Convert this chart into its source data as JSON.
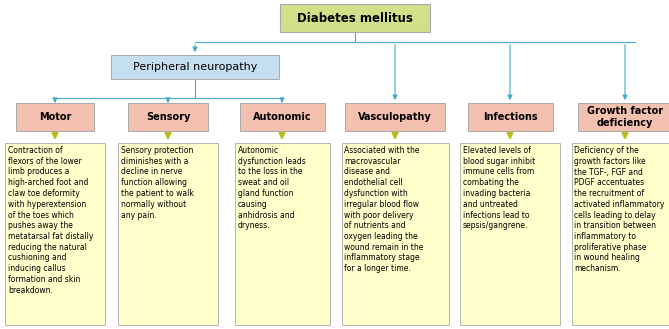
{
  "title": "Diabetes mellitus",
  "title_box_color": "#d4df8a",
  "title_text_color": "#000000",
  "level2_label": "Peripheral neuropathy",
  "level2_box_color": "#c5dff0",
  "level2_text_color": "#000000",
  "level3_labels": [
    "Motor",
    "Sensory",
    "Autonomic",
    "Vasculopathy",
    "Infections",
    "Growth factor\ndeficiency"
  ],
  "level3_box_color": "#f4c0b0",
  "level3_text_color": "#000000",
  "descriptions": [
    "Contraction of\nflexors of the lower\nlimb produces a\nhigh-arched foot and\nclaw toe deformity\nwith hyperextension\nof the toes which\npushes away the\nmetatarsal fat distally\nreducing the natural\ncushioning and\ninducing callus\nformation and skin\nbreakdown.",
    "Sensory protection\ndiminishes with a\ndecline in nerve\nfunction allowing\nthe patient to walk\nnormally without\nany pain.",
    "Autonomic\ndysfunction leads\nto the loss in the\nsweat and oil\ngland function\ncausing\nanhidrosis and\ndryness.",
    "Associated with the\nmacrovascular\ndisease and\nendothelial cell\ndysfunction with\nirregular blood flow\nwith poor delivery\nof nutrients and\noxygen leading the\nwound remain in the\ninflammatory stage\nfor a longer time.",
    "Elevated levels of\nblood sugar inhibit\nimmune cells from\ncombating the\ninvading bacteria\nand untreated\ninfections lead to\nsepsis/gangrene.",
    "Deficiency of the\ngrowth factors like\nthe TGF-, FGF and\nPDGF accentuates\nthe recruitment of\nactivated inflammatory\ncells leading to delay\nin transition between\ninflammatory to\nproliferative phase\nin wound healing\nmechanism."
  ],
  "desc_box_color": "#ffffcc",
  "desc_text_color": "#000000",
  "arrow_color": "#44aacc",
  "line_color": "#44aacc",
  "down_arrow_color": "#bbbb22",
  "bg_color": "#ffffff",
  "border_color": "#aaaaaa",
  "fig_width": 6.69,
  "fig_height": 3.29,
  "dpi": 100
}
